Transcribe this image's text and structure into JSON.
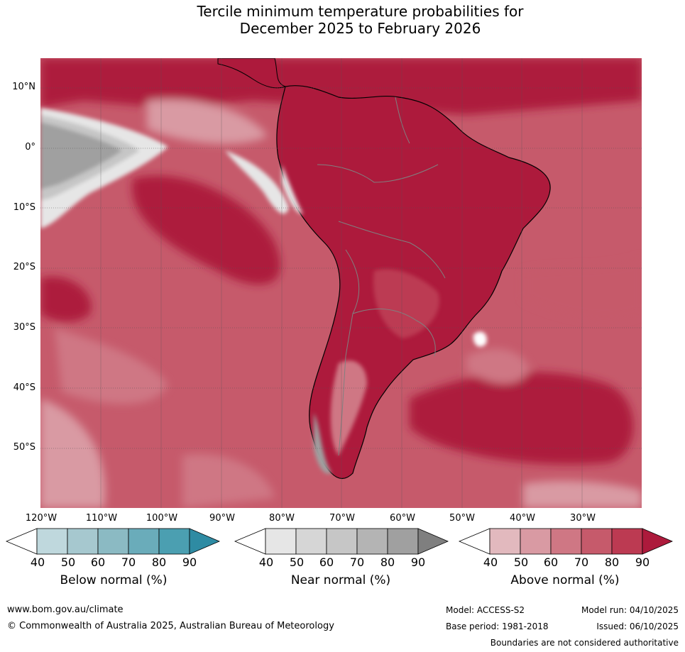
{
  "title": {
    "line1": "Tercile minimum temperature probabilities for",
    "line2": "December 2025 to February 2026"
  },
  "map": {
    "lat_labels": [
      "10°N",
      "0°",
      "10°S",
      "20°S",
      "30°S",
      "40°S",
      "50°S"
    ],
    "lon_labels": [
      "120°W",
      "110°W",
      "100°W",
      "90°W",
      "80°W",
      "70°W",
      "60°W",
      "50°W",
      "40°W",
      "30°W"
    ]
  },
  "colorbars": {
    "below": {
      "title": "Below normal (%)",
      "ticks": [
        "40",
        "50",
        "60",
        "70",
        "80",
        "90"
      ],
      "colors": [
        "#ffffff",
        "#bfd8dd",
        "#a6c8cf",
        "#8bbac3",
        "#6aacba",
        "#4b9fb1",
        "#2e8ba3"
      ]
    },
    "near": {
      "title": "Near normal (%)",
      "ticks": [
        "40",
        "50",
        "60",
        "70",
        "80",
        "90"
      ],
      "colors": [
        "#ffffff",
        "#e6e6e6",
        "#d6d6d6",
        "#c6c6c6",
        "#b4b4b4",
        "#a0a0a0",
        "#7f7f7f"
      ]
    },
    "above": {
      "title": "Above normal (%)",
      "ticks": [
        "40",
        "50",
        "60",
        "70",
        "80",
        "90"
      ],
      "colors": [
        "#ffffff",
        "#e2b9be",
        "#d99aa3",
        "#cf7784",
        "#c65a6b",
        "#bc3a52",
        "#ad1a3c"
      ]
    }
  },
  "footer": {
    "website": "www.bom.gov.au/climate",
    "copyright": "© Commonwealth of Australia 2025, Australian Bureau of Meteorology",
    "model": "Model: ACCESS-S2",
    "base_period": "Base period: 1981-2018",
    "model_run": "Model run: 04/10/2025",
    "issued": "Issued: 06/10/2025",
    "boundaries": "Boundaries are not considered authoritative"
  }
}
